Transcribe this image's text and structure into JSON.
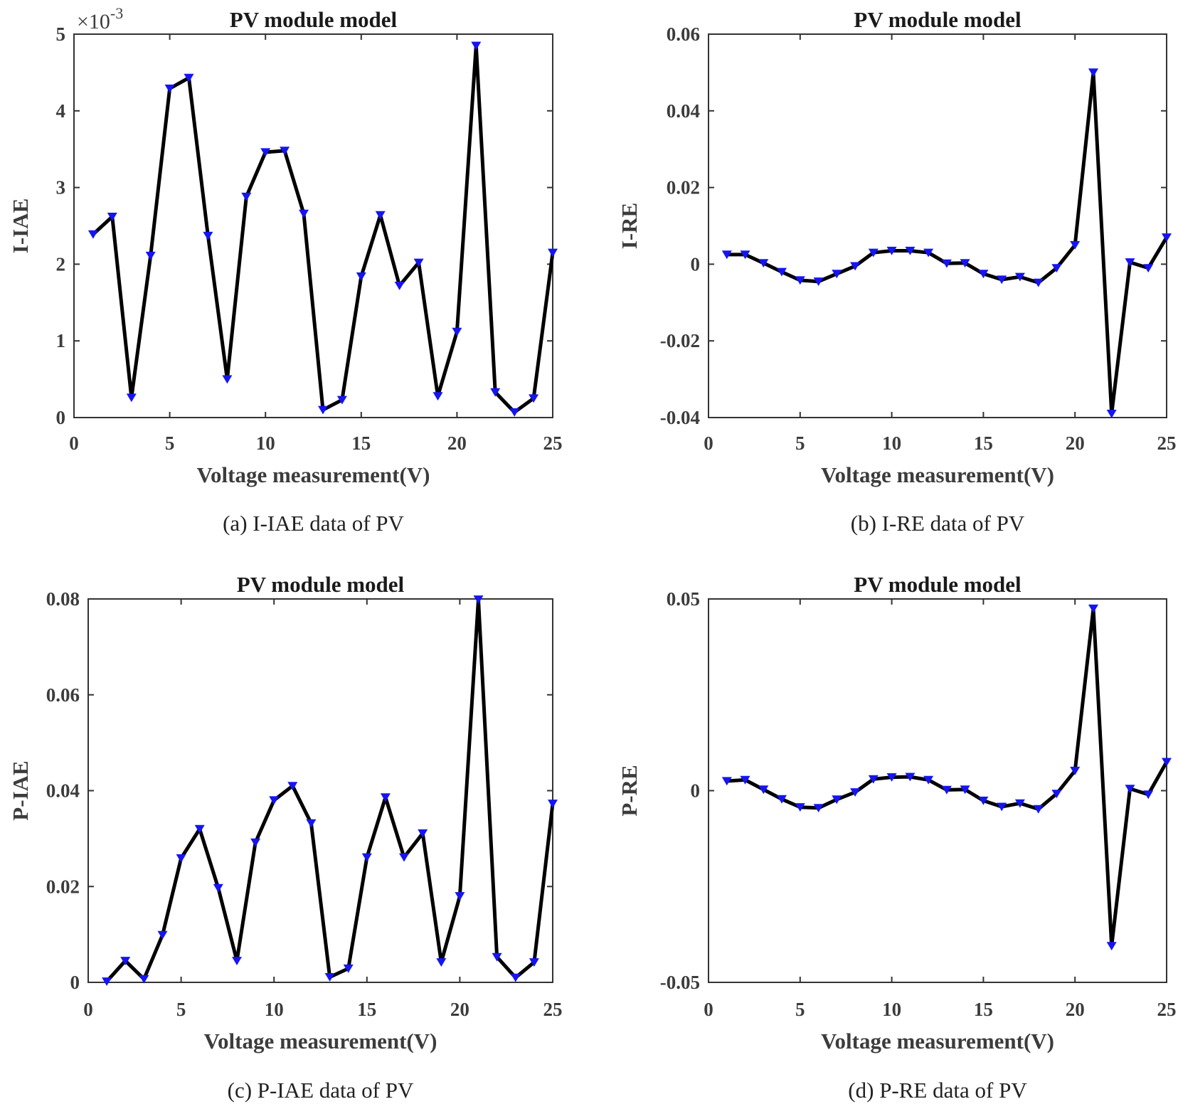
{
  "figure": {
    "captions": [
      "(a) I-IAE data of PV",
      "(b) I-RE data of PV",
      "(c) P-IAE data of PV",
      "(d) P-RE data of PV"
    ]
  },
  "chart_data": [
    {
      "type": "line",
      "title": "PV module model",
      "xlabel": "Voltage measurement(V)",
      "ylabel": "I-IAE",
      "caption": "(a) I-IAE data of PV",
      "xlim": [
        0,
        25
      ],
      "ylim": [
        0,
        5
      ],
      "xticks": [
        0,
        5,
        10,
        15,
        20,
        25
      ],
      "yticks": [
        0,
        1,
        2,
        3,
        4,
        5
      ],
      "ytick_labels": [
        "0",
        "1",
        "2",
        "3",
        "4",
        "5"
      ],
      "exponent_prefix": "×10",
      "exponent_power": "-3",
      "marker": "triangle-down",
      "line_color": "#000000",
      "marker_color": "#1515f0",
      "x": [
        1,
        2,
        3,
        4,
        5,
        6,
        7,
        8,
        9,
        10,
        11,
        12,
        13,
        14,
        15,
        16,
        17,
        18,
        19,
        20,
        21,
        22,
        23,
        24,
        25
      ],
      "values": [
        2.39,
        2.62,
        0.26,
        2.11,
        4.29,
        4.43,
        2.37,
        0.5,
        2.88,
        3.46,
        3.48,
        2.66,
        0.1,
        0.23,
        1.84,
        2.64,
        1.72,
        2.02,
        0.28,
        1.12,
        4.85,
        0.33,
        0.07,
        0.25,
        2.15
      ]
    },
    {
      "type": "line",
      "title": "PV module model",
      "xlabel": "Voltage measurement(V)",
      "ylabel": "I-RE",
      "caption": "(b) I-RE data of PV",
      "xlim": [
        0,
        25
      ],
      "ylim": [
        -0.04,
        0.06
      ],
      "xticks": [
        0,
        5,
        10,
        15,
        20,
        25
      ],
      "yticks": [
        -0.04,
        -0.02,
        0,
        0.02,
        0.04,
        0.06
      ],
      "ytick_labels": [
        "-0.04",
        "-0.02",
        "0",
        "0.02",
        "0.04",
        "0.06"
      ],
      "marker": "triangle-down",
      "line_color": "#000000",
      "marker_color": "#1515f0",
      "x": [
        1,
        2,
        3,
        4,
        5,
        6,
        7,
        8,
        9,
        10,
        11,
        12,
        13,
        14,
        15,
        16,
        17,
        18,
        19,
        20,
        21,
        22,
        23,
        24,
        25
      ],
      "values": [
        0.0025,
        0.0025,
        0.0003,
        -0.002,
        -0.0042,
        -0.0045,
        -0.0025,
        -0.0005,
        0.003,
        0.0035,
        0.0035,
        0.003,
        0.0002,
        0.0003,
        -0.0025,
        -0.004,
        -0.0033,
        -0.0048,
        -0.001,
        0.005,
        0.05,
        -0.039,
        0.0005,
        -0.001,
        0.007
      ]
    },
    {
      "type": "line",
      "title": "PV module model",
      "xlabel": "Voltage measurement(V)",
      "ylabel": "P-IAE",
      "caption": "(c) P-IAE data of PV",
      "xlim": [
        0,
        25
      ],
      "ylim": [
        0,
        0.08
      ],
      "xticks": [
        0,
        5,
        10,
        15,
        20,
        25
      ],
      "yticks": [
        0,
        0.02,
        0.04,
        0.06,
        0.08
      ],
      "ytick_labels": [
        "0",
        "0.02",
        "0.04",
        "0.06",
        "0.08"
      ],
      "marker": "triangle-down",
      "line_color": "#000000",
      "marker_color": "#1515f0",
      "x": [
        1,
        2,
        3,
        4,
        5,
        6,
        7,
        8,
        9,
        10,
        11,
        12,
        13,
        14,
        15,
        16,
        17,
        18,
        19,
        20,
        21,
        22,
        23,
        24,
        25
      ],
      "values": [
        0.0002,
        0.0045,
        0.0007,
        0.0099,
        0.0259,
        0.032,
        0.0197,
        0.0045,
        0.0292,
        0.038,
        0.041,
        0.0332,
        0.0011,
        0.0029,
        0.0261,
        0.0386,
        0.0261,
        0.0311,
        0.0042,
        0.018,
        0.0799,
        0.0053,
        0.001,
        0.0042,
        0.0373
      ]
    },
    {
      "type": "line",
      "title": "PV module model",
      "xlabel": "Voltage measurement(V)",
      "ylabel": "P-RE",
      "caption": "(d) P-RE data of PV",
      "xlim": [
        0,
        25
      ],
      "ylim": [
        -0.05,
        0.05
      ],
      "xticks": [
        0,
        5,
        10,
        15,
        20,
        25
      ],
      "yticks": [
        -0.05,
        0,
        0.05
      ],
      "ytick_labels": [
        "-0.05",
        "0",
        "0.05"
      ],
      "marker": "triangle-down",
      "line_color": "#000000",
      "marker_color": "#1515f0",
      "x": [
        1,
        2,
        3,
        4,
        5,
        6,
        7,
        8,
        9,
        10,
        11,
        12,
        13,
        14,
        15,
        16,
        17,
        18,
        19,
        20,
        21,
        22,
        23,
        24,
        25
      ],
      "values": [
        0.0025,
        0.0028,
        0.0003,
        -0.0022,
        -0.0043,
        -0.0045,
        -0.0023,
        -0.0004,
        0.003,
        0.0035,
        0.0036,
        0.0028,
        0.0002,
        0.0003,
        -0.0026,
        -0.0042,
        -0.0033,
        -0.0048,
        -0.0008,
        0.0052,
        0.0475,
        -0.0405,
        0.0005,
        -0.001,
        0.0075
      ]
    }
  ]
}
